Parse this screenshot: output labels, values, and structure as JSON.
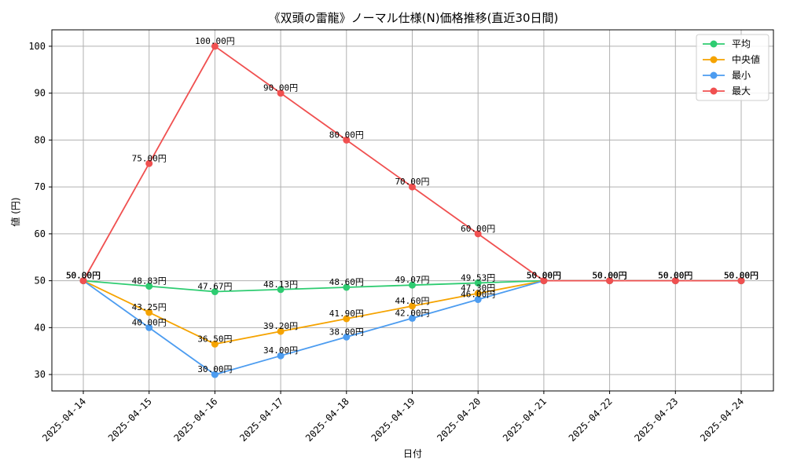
{
  "chart_data": {
    "type": "line",
    "title": "《双頭の雷龍》ノーマル仕様(N)価格推移(直近30日間)",
    "xlabel": "日付",
    "ylabel": "値 (円)",
    "categories": [
      "2025-04-14",
      "2025-04-15",
      "2025-04-16",
      "2025-04-17",
      "2025-04-18",
      "2025-04-19",
      "2025-04-20",
      "2025-04-21",
      "2025-04-22",
      "2025-04-23",
      "2025-04-24"
    ],
    "ylim": [
      26.5,
      103.5
    ],
    "yticks": [
      30,
      40,
      50,
      60,
      70,
      80,
      90,
      100
    ],
    "grid": true,
    "legend_position": "top-right",
    "value_suffix": "円",
    "series": [
      {
        "name": "平均",
        "color": "#2ecc71",
        "values": [
          50.0,
          48.83,
          47.67,
          48.13,
          48.6,
          49.07,
          49.53,
          50.0,
          50.0,
          50.0,
          50.0
        ]
      },
      {
        "name": "中央値",
        "color": "#f5a300",
        "values": [
          50.0,
          43.25,
          36.5,
          39.2,
          41.9,
          44.6,
          47.3,
          50.0,
          50.0,
          50.0,
          50.0
        ]
      },
      {
        "name": "最小",
        "color": "#4c9cf0",
        "values": [
          50.0,
          40.0,
          30.0,
          34.0,
          38.0,
          42.0,
          46.0,
          50.0,
          50.0,
          50.0,
          50.0
        ]
      },
      {
        "name": "最大",
        "color": "#f05050",
        "values": [
          50.0,
          75.0,
          100.0,
          90.0,
          80.0,
          70.0,
          60.0,
          50.0,
          50.0,
          50.0,
          50.0
        ]
      }
    ]
  }
}
